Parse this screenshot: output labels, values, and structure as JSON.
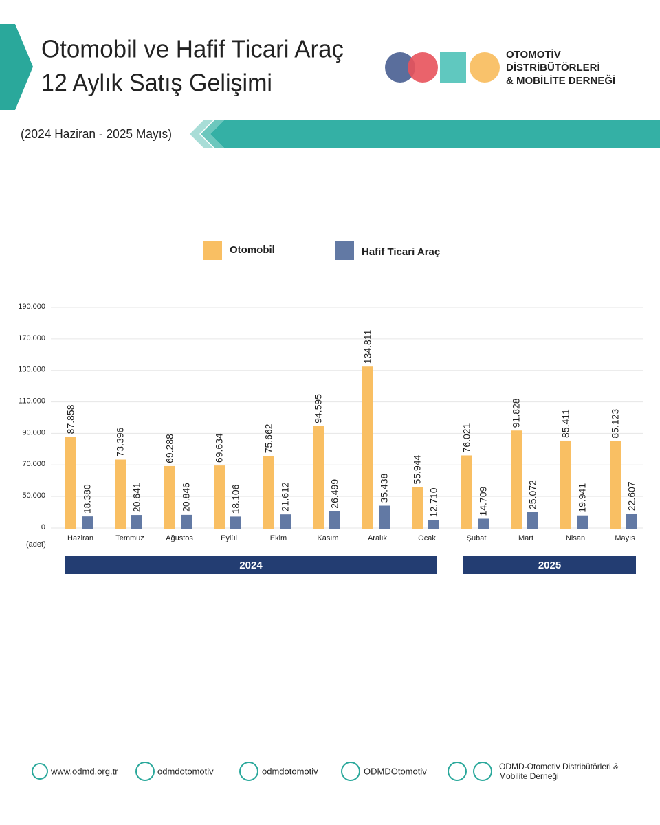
{
  "header": {
    "title_line1": "Otomobil ve Hafif Ticari Araç",
    "title_line2": "12 Aylık Satış Gelişimi",
    "subtitle": "(2024 Haziran - 2025 Mayıs)",
    "logo_lines": [
      "OTOMOTİV",
      "DİSTRİBÜTÖRLERİ",
      "& MOBİLİTE DERNEĞİ"
    ]
  },
  "chart_data": {
    "type": "bar",
    "categories": [
      "Haziran",
      "Temmuz",
      "Ağustos",
      "Eylül",
      "Ekim",
      "Kasım",
      "Aralık",
      "Ocak",
      "Şubat",
      "Mart",
      "Nisan",
      "Mayıs"
    ],
    "series": [
      {
        "name": "Otomobil",
        "color": "#f9bf63",
        "values": [
          87858,
          73396,
          69288,
          69634,
          75662,
          94595,
          134811,
          55944,
          76021,
          91828,
          85411,
          85123
        ],
        "value_labels": [
          "87.858",
          "73.396",
          "69.288",
          "69.634",
          "75.662",
          "94.595",
          "134.811",
          "55.944",
          "76.021",
          "91.828",
          "85.411",
          "85.123"
        ]
      },
      {
        "name": "Hafif Ticari Araç",
        "color": "#6279a4",
        "values": [
          18380,
          20641,
          20846,
          18106,
          21612,
          26499,
          35438,
          12710,
          14709,
          25072,
          19941,
          22607
        ],
        "value_labels": [
          "18.380",
          "20.641",
          "20.846",
          "18.106",
          "21.612",
          "26.499",
          "35.438",
          "12.710",
          "14.709",
          "25.072",
          "19.941",
          "22.607"
        ]
      }
    ],
    "ylim": [
      0,
      190000
    ],
    "yticks": [
      0,
      {
        "value": 50000,
        "label": "50.000"
      },
      {
        "value": 70000,
        "label": "70.000"
      },
      {
        "value": 90000,
        "label": "90.000"
      },
      {
        "value": 110000,
        "label": "110.000"
      },
      {
        "value": 130000,
        "label": "130.000"
      },
      {
        "value": 170000,
        "label": "170.000"
      },
      {
        "value": 190000,
        "label": "190.000"
      }
    ],
    "y_unit": "(adet)",
    "grid": true,
    "year_labels": [
      "2024",
      "2025"
    ],
    "year_color": "#233d72"
  },
  "footer": {
    "website": "www.odmd.org.tr",
    "twitter": "odmdotomotiv",
    "instagram": "odmdotomotiv",
    "facebook": "ODMDOtomotiv",
    "youtube_line1": "ODMD-Otomotiv Distribütörleri &",
    "youtube_line2": "Mobilite Derneği"
  }
}
